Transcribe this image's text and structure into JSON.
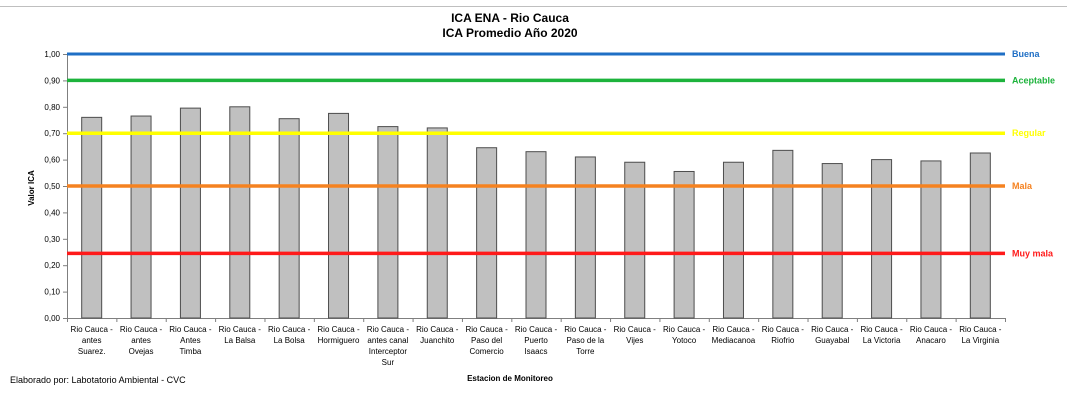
{
  "chart_data": {
    "type": "bar",
    "title": "ICA ENA -  Rio Cauca",
    "subtitle": "ICA Promedio Año 2020",
    "xlabel": "Estacion de Monitoreo",
    "ylabel": "Valor ICA",
    "ylim": [
      0,
      1
    ],
    "yticks": [
      "0,00",
      "0,10",
      "0,20",
      "0,30",
      "0,40",
      "0,50",
      "0,60",
      "0,70",
      "0,80",
      "0,90",
      "1,00"
    ],
    "categories": [
      [
        "Rio Cauca -",
        "antes",
        "Suarez."
      ],
      [
        "Rio Cauca -",
        "antes",
        "Ovejas"
      ],
      [
        "Rio Cauca -",
        "Antes",
        "Timba"
      ],
      [
        "Rio Cauca -",
        "La Balsa"
      ],
      [
        "Rio Cauca -",
        "La Bolsa"
      ],
      [
        "Rio Cauca -",
        "Hormiguero"
      ],
      [
        "Rio Cauca -",
        "antes canal",
        "Interceptor",
        "Sur"
      ],
      [
        "Rio Cauca -",
        "Juanchito"
      ],
      [
        "Rio Cauca -",
        "Paso del",
        "Comercio"
      ],
      [
        "Rio Cauca -",
        "Puerto",
        "Isaacs"
      ],
      [
        "Rio Cauca -",
        "Paso de la",
        "Torre"
      ],
      [
        "Rio Cauca -",
        "Vijes"
      ],
      [
        "Rio Cauca -",
        "Yotoco"
      ],
      [
        "Rio Cauca -",
        "Mediacanoa"
      ],
      [
        "Rio Cauca -",
        "Riofrio"
      ],
      [
        "Rio Cauca -",
        "Guayabal"
      ],
      [
        "Rio Cauca -",
        "La Victoria"
      ],
      [
        "Rio Cauca -",
        "Anacaro"
      ],
      [
        "Rio Cauca -",
        "La Virginia"
      ]
    ],
    "values": [
      0.76,
      0.765,
      0.795,
      0.8,
      0.755,
      0.775,
      0.725,
      0.72,
      0.645,
      0.63,
      0.61,
      0.59,
      0.555,
      0.59,
      0.635,
      0.585,
      0.6,
      0.595,
      0.625
    ],
    "bar_color": "#c0c0c0",
    "bar_stroke": "#4d4d4d",
    "thresholds": [
      {
        "label": "Buena",
        "value": 1.0,
        "color": "#1f6fc5"
      },
      {
        "label": "Aceptable",
        "value": 0.9,
        "color": "#1db33c"
      },
      {
        "label": "Regular",
        "value": 0.7,
        "color": "#ffff00"
      },
      {
        "label": "Mala",
        "value": 0.5,
        "color": "#f58220"
      },
      {
        "label": "Muy mala",
        "value": 0.245,
        "color": "#ff1a1a"
      }
    ],
    "grid": false,
    "legend": "right"
  },
  "footer": {
    "credit": "Elaborado por: Labotatorio Ambiental - CVC"
  }
}
